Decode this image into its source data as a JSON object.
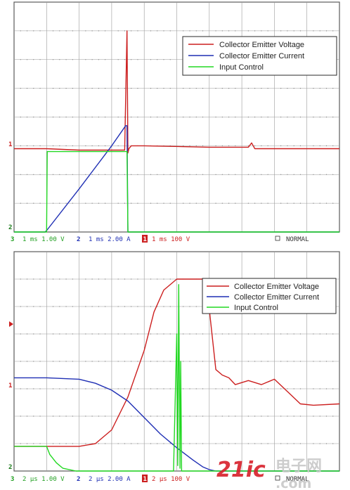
{
  "colors": {
    "voltage": "#cc1f1f",
    "current": "#1f2fb4",
    "input": "#22d822",
    "grid": "#9a9a9a",
    "status_text": "#1a1a7a",
    "watermark": "#d81f2a"
  },
  "chart_data": [
    {
      "type": "line",
      "grid": true,
      "legend_position": "top-right",
      "legend": [
        "Collector Emitter Voltage",
        "Collector Emitter Current",
        "Input Control"
      ],
      "x_div_unit": "1 ms",
      "xlim": [
        0,
        10
      ],
      "ylim": [
        0,
        8
      ],
      "channel_markers": {
        "voltage": "1",
        "input": "2"
      },
      "status_bar": {
        "ch3": "3",
        "ch3_scale": "1 ms 1.00 V",
        "ch2": "2",
        "ch2_scale": "1 ms 2.00 A",
        "ch1": "1",
        "ch1_scale": "1 ms 100 V",
        "mode": "NORMAL"
      },
      "series": [
        {
          "name": "Collector Emitter Voltage",
          "color": "#cc1f1f",
          "x": [
            0,
            1.0,
            2.0,
            3.0,
            3.4,
            3.47,
            3.5,
            3.53,
            3.6,
            4.0,
            6.0,
            7.2,
            7.3,
            7.4,
            8.0,
            10.0
          ],
          "y": [
            2.9,
            2.9,
            2.85,
            2.85,
            2.85,
            7.0,
            2.75,
            2.9,
            3.0,
            3.0,
            2.95,
            2.95,
            3.1,
            2.9,
            2.9,
            2.9
          ]
        },
        {
          "name": "Collector Emitter Current",
          "color": "#1f2fb4",
          "x": [
            0,
            0.95,
            1.0,
            2.0,
            3.0,
            3.43,
            3.47,
            3.5,
            3.55,
            10.0
          ],
          "y": [
            0.0,
            0.0,
            0.05,
            1.5,
            3.0,
            3.7,
            3.7,
            0.0,
            0.0,
            0.0
          ]
        },
        {
          "name": "Input Control",
          "color": "#22d822",
          "x": [
            0,
            1.0,
            1.02,
            3.47,
            3.5,
            10.0
          ],
          "y": [
            0.0,
            0.0,
            2.8,
            2.8,
            0.0,
            0.0
          ]
        }
      ]
    },
    {
      "type": "line",
      "grid": true,
      "legend_position": "top-right",
      "legend": [
        "Collector Emitter Voltage",
        "Collector Emitter Current",
        "Input Control"
      ],
      "x_div_unit": "2 µs",
      "xlim": [
        0,
        10
      ],
      "ylim": [
        0,
        8
      ],
      "channel_markers": {
        "voltage": "1",
        "input": "2"
      },
      "status_bar": {
        "ch3": "3",
        "ch3_scale": "2 µs 1.00 V",
        "ch2": "2",
        "ch2_scale": "2 µs 2.00 A",
        "ch1": "1",
        "ch1_scale": "2 µs 100 V",
        "mode": "NORMAL"
      },
      "series": [
        {
          "name": "Collector Emitter Voltage",
          "color": "#cc1f1f",
          "x": [
            0,
            1.0,
            2.0,
            2.5,
            3.0,
            3.5,
            4.0,
            4.3,
            4.6,
            5.0,
            5.2,
            5.5,
            5.8,
            6.0,
            6.2,
            6.4,
            6.6,
            6.8,
            7.2,
            7.6,
            8.0,
            8.4,
            8.8,
            9.2,
            10.0
          ],
          "y": [
            0.9,
            0.9,
            0.9,
            1.0,
            1.5,
            2.7,
            4.4,
            5.8,
            6.6,
            7.0,
            7.0,
            7.0,
            7.0,
            5.9,
            3.7,
            3.5,
            3.4,
            3.15,
            3.3,
            3.15,
            3.35,
            2.9,
            2.45,
            2.4,
            2.45
          ]
        },
        {
          "name": "Collector Emitter Current",
          "color": "#1f2fb4",
          "x": [
            0,
            1.0,
            2.0,
            2.5,
            3.0,
            3.5,
            4.0,
            4.5,
            5.0,
            5.5,
            5.8,
            6.0,
            6.2,
            6.5,
            10.0
          ],
          "y": [
            3.4,
            3.4,
            3.35,
            3.2,
            2.95,
            2.55,
            1.95,
            1.35,
            0.85,
            0.4,
            0.15,
            0.05,
            0.0,
            0.0,
            0.0
          ]
        },
        {
          "name": "Input Control",
          "color": "#22d822",
          "x": [
            0,
            1.0,
            1.1,
            1.3,
            1.5,
            1.9,
            4.9,
            5.0,
            5.03,
            5.06,
            5.1,
            5.12,
            5.15,
            10.0
          ],
          "y": [
            0.9,
            0.9,
            0.6,
            0.3,
            0.1,
            0.0,
            0.0,
            5.0,
            0.2,
            6.8,
            0.1,
            4.0,
            0.0,
            0.0
          ]
        }
      ]
    }
  ],
  "watermark": {
    "brand": "21ic",
    "cn": "电子网",
    "domain": ".com"
  }
}
